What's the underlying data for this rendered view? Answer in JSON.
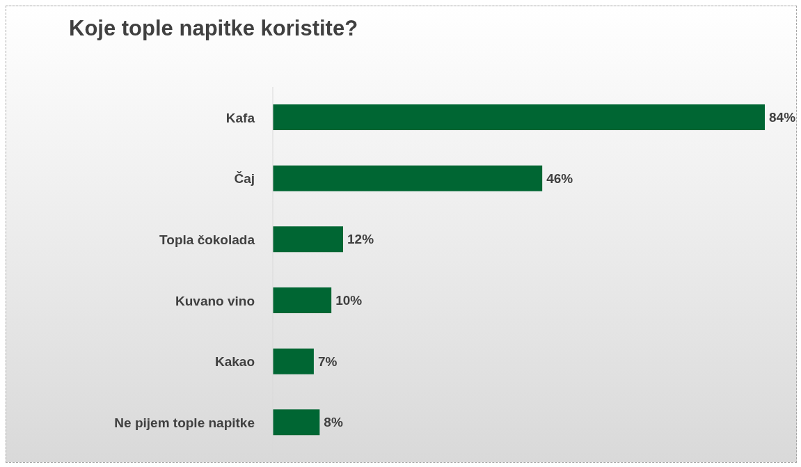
{
  "chart_data": {
    "type": "bar",
    "orientation": "horizontal",
    "title": "Koje tople napitke koristite?",
    "categories": [
      "Kafa",
      "Čaj",
      "Topla čokolada",
      "Kuvano vino",
      "Kakao",
      "Ne pijem tople napitke"
    ],
    "values": [
      84,
      46,
      12,
      10,
      7,
      8
    ],
    "value_labels": [
      "84%",
      "46%",
      "12%",
      "10%",
      "7%",
      "8%"
    ],
    "color": "#006633",
    "grid": false,
    "legend": false
  }
}
